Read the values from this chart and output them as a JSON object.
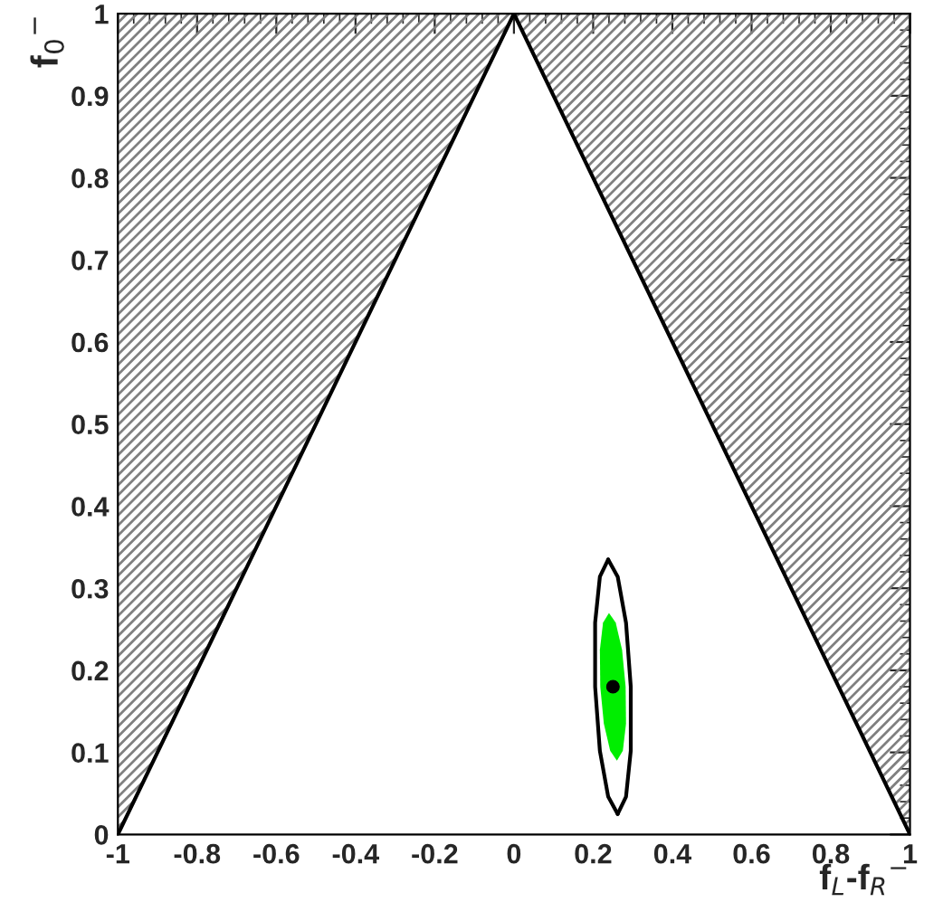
{
  "chart_data": {
    "type": "line",
    "xlabel": "f$_{L}$-f$_{R}$$^{−}$",
    "ylabel": "f$_{0}$$^{−}$",
    "xlim": [
      -1,
      1
    ],
    "ylim": [
      0,
      1
    ],
    "xticks": [
      {
        "value": -1,
        "label": "-1"
      },
      {
        "value": -0.8,
        "label": "-0.8"
      },
      {
        "value": -0.6,
        "label": "-0.6"
      },
      {
        "value": -0.4,
        "label": "-0.4"
      },
      {
        "value": -0.2,
        "label": "-0.2"
      },
      0,
      0.2,
      0.4,
      0.6,
      0.8,
      1
    ],
    "yticks": [
      0,
      0.1,
      0.2,
      0.3,
      0.4,
      0.5,
      0.6,
      0.7,
      0.8,
      0.9,
      1
    ],
    "grid": false,
    "series": [
      {
        "type": "area",
        "color": "#808080",
        "x": [
          -1,
          -1,
          0,
          -1
        ],
        "values": [
          0,
          1,
          1,
          0
        ]
      },
      {
        "type": "area",
        "color": "#808080",
        "x": [
          0,
          1,
          1,
          0
        ],
        "values": [
          1,
          1,
          0,
          1
        ]
      },
      {
        "color": "#000000",
        "x": [
          -1,
          0,
          1
        ],
        "values": [
          0,
          1,
          0
        ]
      },
      {
        "type": "area",
        "color": "#00ee00",
        "x": [
          0.282,
          0.273,
          0.257,
          0.24,
          0.225,
          0.217,
          0.218,
          0.227,
          0.243,
          0.26,
          0.275,
          0.283,
          0.282
        ],
        "values": [
          0.18,
          0.225,
          0.258,
          0.27,
          0.258,
          0.225,
          0.18,
          0.135,
          0.102,
          0.09,
          0.102,
          0.135,
          0.18
        ]
      },
      {
        "type": "line",
        "color": "#000000",
        "x": [
          0.238,
          0.262,
          0.283,
          0.295,
          0.295,
          0.283,
          0.262
        ],
        "values": [
          0.335,
          0.314,
          0.258,
          0.18,
          0.102,
          0.046,
          0.025
        ]
      },
      {
        "type": "line",
        "color": "#000000",
        "x": [
          0.238,
          0.217,
          0.205,
          0.205,
          0.217,
          0.238,
          0.262
        ],
        "values": [
          0.335,
          0.314,
          0.258,
          0.18,
          0.102,
          0.046,
          0.025
        ]
      },
      {
        "type": "scatter",
        "color": "#000000",
        "x": [
          0.25
        ],
        "values": [
          0.18
        ]
      }
    ]
  }
}
